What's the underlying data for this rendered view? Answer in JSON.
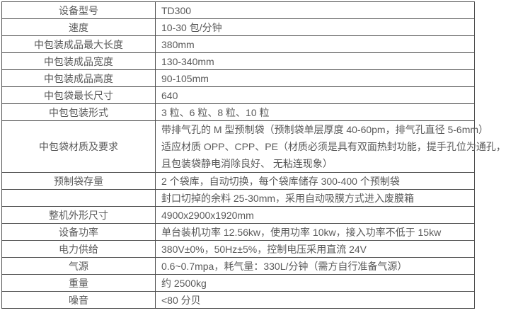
{
  "colors": {
    "border": "#4d4d4d",
    "text": "#595959",
    "background": "#ffffff"
  },
  "table": {
    "rows": [
      {
        "label": "设备型号",
        "value": "TD300"
      },
      {
        "label": "速度",
        "value": "10-30 包/分钟"
      },
      {
        "label": "中包装成品最大长度",
        "value": "380mm"
      },
      {
        "label": "中包装成品宽度",
        "value": "130-340mm"
      },
      {
        "label": "中包装成品高度",
        "value": "90-105mm"
      },
      {
        "label": "中包袋最长尺寸",
        "value": "640"
      },
      {
        "label": "中包包装形式",
        "value": "3 粒、6 粒、8 粒、10 粒"
      },
      {
        "label": "中包袋材质及要求",
        "lines": [
          "带排气孔的 M 型预制袋（预制袋单层厚度 40-60pm，排气孔直径 5-6mm）",
          "适应材质 OPP、CPP、PE（材质必须是具有双面热封功能，提手孔位为通孔，",
          "且包装袋静电消除良好、 无粘连现象）"
        ]
      },
      {
        "label": "预制袋存量",
        "value": "2 个袋库，自动切换，每个袋库储存 300-400 个预制袋"
      },
      {
        "label": "",
        "value": "封口切掉的余料 25-30mm，采用自动吸膜方式进入废膜箱"
      },
      {
        "label": "整机外形尺寸",
        "value": "4900x2900x1920mm"
      },
      {
        "label": "设备功率",
        "value": "单台装机功率 12.56kw，使用功率 10kw，接入功率不低于 15kw"
      },
      {
        "label": "电力供给",
        "value": "380V±0%，50Hz±5%，控制电压采用直流 24V"
      },
      {
        "label": "气源",
        "value": "0.6~0.7mpa，耗气量：330L/分钟（需方自行准备气源）"
      },
      {
        "label": "重量",
        "value": "约 2500kg"
      },
      {
        "label": "噪音",
        "value": "<80 分贝"
      }
    ]
  }
}
